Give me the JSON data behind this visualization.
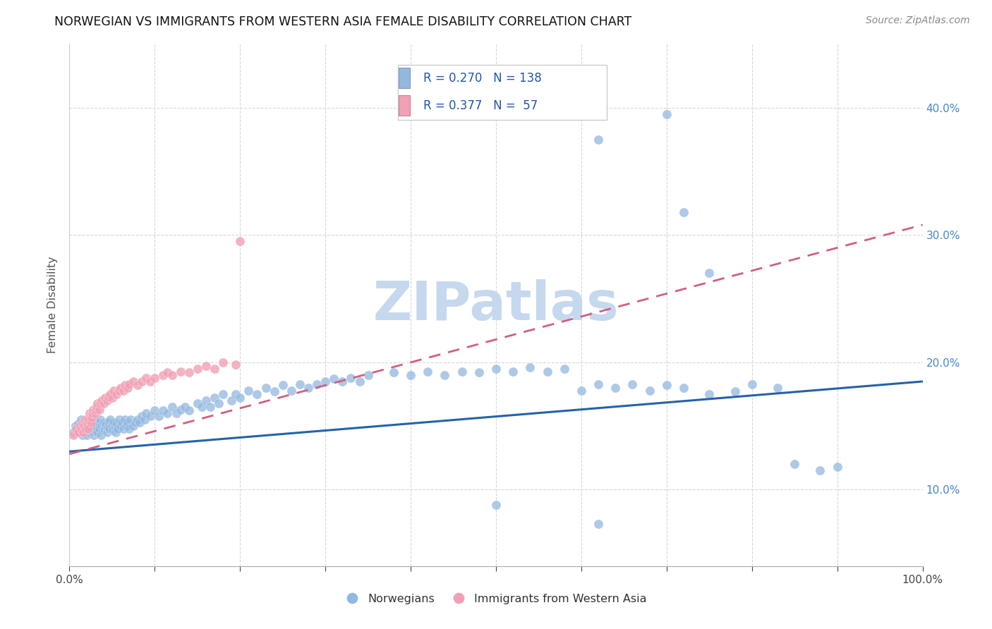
{
  "title": "NORWEGIAN VS IMMIGRANTS FROM WESTERN ASIA FEMALE DISABILITY CORRELATION CHART",
  "source": "Source: ZipAtlas.com",
  "ylabel": "Female Disability",
  "xlim": [
    0.0,
    1.0
  ],
  "ylim": [
    0.04,
    0.45
  ],
  "norwegian_R": 0.27,
  "norwegian_N": 138,
  "immigrant_R": 0.377,
  "immigrant_N": 57,
  "norwegian_color": "#92b8e0",
  "immigrant_color": "#f2a0b5",
  "norwegian_line_color": "#2563a8",
  "immigrant_line_color": "#d06080",
  "watermark_color": "#c5d8ee",
  "background_color": "#ffffff",
  "grid_color": "#d8d8d8",
  "title_fontsize": 12.5,
  "source_fontsize": 10,
  "nor_x": [
    0.005,
    0.007,
    0.008,
    0.01,
    0.01,
    0.012,
    0.013,
    0.014,
    0.015,
    0.015,
    0.016,
    0.017,
    0.018,
    0.018,
    0.019,
    0.02,
    0.02,
    0.021,
    0.022,
    0.022,
    0.023,
    0.024,
    0.025,
    0.025,
    0.026,
    0.027,
    0.028,
    0.028,
    0.029,
    0.03,
    0.03,
    0.031,
    0.032,
    0.033,
    0.034,
    0.035,
    0.036,
    0.037,
    0.038,
    0.039,
    0.04,
    0.041,
    0.042,
    0.043,
    0.044,
    0.045,
    0.046,
    0.047,
    0.048,
    0.05,
    0.051,
    0.052,
    0.053,
    0.054,
    0.055,
    0.057,
    0.058,
    0.06,
    0.062,
    0.063,
    0.065,
    0.067,
    0.068,
    0.07,
    0.072,
    0.075,
    0.077,
    0.08,
    0.082,
    0.085,
    0.088,
    0.09,
    0.095,
    0.1,
    0.105,
    0.11,
    0.115,
    0.12,
    0.125,
    0.13,
    0.135,
    0.14,
    0.15,
    0.155,
    0.16,
    0.165,
    0.17,
    0.175,
    0.18,
    0.19,
    0.195,
    0.2,
    0.21,
    0.22,
    0.23,
    0.24,
    0.25,
    0.26,
    0.27,
    0.28,
    0.29,
    0.3,
    0.31,
    0.32,
    0.33,
    0.34,
    0.35,
    0.38,
    0.4,
    0.42,
    0.44,
    0.46,
    0.48,
    0.5,
    0.52,
    0.54,
    0.56,
    0.58,
    0.6,
    0.62,
    0.64,
    0.66,
    0.68,
    0.7,
    0.72,
    0.75,
    0.78,
    0.8,
    0.83,
    0.85,
    0.88,
    0.9,
    0.5,
    0.62,
    0.7,
    0.72,
    0.75,
    0.62
  ],
  "nor_y": [
    0.145,
    0.15,
    0.148,
    0.152,
    0.147,
    0.15,
    0.148,
    0.155,
    0.143,
    0.152,
    0.146,
    0.153,
    0.148,
    0.145,
    0.155,
    0.143,
    0.15,
    0.148,
    0.152,
    0.145,
    0.149,
    0.153,
    0.147,
    0.151,
    0.146,
    0.153,
    0.148,
    0.155,
    0.143,
    0.15,
    0.147,
    0.153,
    0.149,
    0.145,
    0.152,
    0.148,
    0.155,
    0.143,
    0.15,
    0.147,
    0.153,
    0.148,
    0.15,
    0.152,
    0.145,
    0.149,
    0.153,
    0.148,
    0.155,
    0.15,
    0.147,
    0.153,
    0.149,
    0.145,
    0.152,
    0.148,
    0.155,
    0.15,
    0.153,
    0.148,
    0.155,
    0.15,
    0.153,
    0.148,
    0.155,
    0.15,
    0.153,
    0.155,
    0.153,
    0.158,
    0.155,
    0.16,
    0.158,
    0.162,
    0.158,
    0.162,
    0.16,
    0.165,
    0.16,
    0.163,
    0.165,
    0.162,
    0.168,
    0.165,
    0.17,
    0.165,
    0.172,
    0.168,
    0.175,
    0.17,
    0.175,
    0.172,
    0.178,
    0.175,
    0.18,
    0.177,
    0.182,
    0.178,
    0.183,
    0.18,
    0.183,
    0.185,
    0.187,
    0.185,
    0.188,
    0.185,
    0.19,
    0.192,
    0.19,
    0.193,
    0.19,
    0.193,
    0.192,
    0.195,
    0.193,
    0.196,
    0.193,
    0.195,
    0.178,
    0.183,
    0.18,
    0.183,
    0.178,
    0.182,
    0.18,
    0.175,
    0.177,
    0.183,
    0.18,
    0.12,
    0.115,
    0.118,
    0.088,
    0.073,
    0.395,
    0.318,
    0.27,
    0.375
  ],
  "imm_x": [
    0.005,
    0.008,
    0.01,
    0.012,
    0.014,
    0.015,
    0.016,
    0.017,
    0.018,
    0.019,
    0.02,
    0.021,
    0.022,
    0.023,
    0.024,
    0.025,
    0.026,
    0.027,
    0.028,
    0.03,
    0.031,
    0.032,
    0.033,
    0.035,
    0.036,
    0.038,
    0.04,
    0.042,
    0.044,
    0.046,
    0.048,
    0.05,
    0.052,
    0.055,
    0.058,
    0.06,
    0.063,
    0.065,
    0.068,
    0.07,
    0.075,
    0.08,
    0.085,
    0.09,
    0.095,
    0.1,
    0.11,
    0.115,
    0.12,
    0.13,
    0.14,
    0.15,
    0.16,
    0.17,
    0.18,
    0.195,
    0.2
  ],
  "imm_y": [
    0.143,
    0.148,
    0.145,
    0.15,
    0.148,
    0.152,
    0.145,
    0.15,
    0.155,
    0.148,
    0.155,
    0.152,
    0.148,
    0.155,
    0.16,
    0.153,
    0.157,
    0.16,
    0.163,
    0.16,
    0.163,
    0.165,
    0.168,
    0.163,
    0.168,
    0.17,
    0.168,
    0.172,
    0.17,
    0.173,
    0.175,
    0.172,
    0.178,
    0.175,
    0.178,
    0.18,
    0.178,
    0.182,
    0.18,
    0.183,
    0.185,
    0.182,
    0.185,
    0.188,
    0.185,
    0.188,
    0.19,
    0.192,
    0.19,
    0.193,
    0.192,
    0.195,
    0.197,
    0.195,
    0.2,
    0.198,
    0.295
  ]
}
